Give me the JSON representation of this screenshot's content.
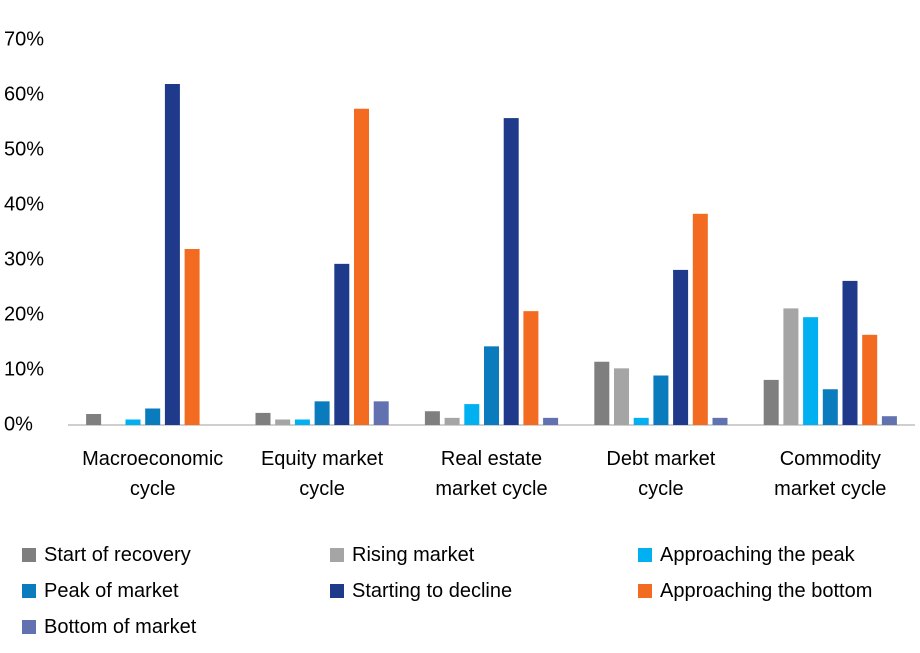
{
  "chart_data": {
    "type": "bar",
    "categories": [
      "Macroeconomic cycle",
      "Equity market cycle",
      "Real estate market cycle",
      "Debt market cycle",
      "Commodity market cycle"
    ],
    "series": [
      {
        "name": "Start of recovery",
        "color": "#7f7f7f",
        "values": [
          2,
          2.2,
          2.5,
          11.5,
          8.2
        ]
      },
      {
        "name": "Rising market",
        "color": "#a5a5a5",
        "values": [
          0,
          1,
          1.3,
          10.3,
          21.2
        ]
      },
      {
        "name": "Approaching the peak",
        "color": "#00b0f0",
        "values": [
          1,
          1,
          3.8,
          1.3,
          19.6
        ]
      },
      {
        "name": "Peak of market",
        "color": "#0a7bbd",
        "values": [
          3,
          4.3,
          14.3,
          9,
          6.5
        ]
      },
      {
        "name": "Starting to decline",
        "color": "#1f3a8a",
        "values": [
          62,
          29.3,
          55.8,
          28.2,
          26.2
        ]
      },
      {
        "name": "Approaching the bottom",
        "color": "#f26b21",
        "values": [
          32,
          57.5,
          20.7,
          38.4,
          16.4
        ]
      },
      {
        "name": "Bottom of market",
        "color": "#6271b0",
        "values": [
          0,
          4.3,
          1.3,
          1.3,
          1.6
        ]
      }
    ],
    "ylim": [
      0,
      70
    ],
    "yticks": [
      {
        "value": 0,
        "label": "0%"
      },
      {
        "value": 10,
        "label": "10%"
      },
      {
        "value": 20,
        "label": "20%"
      },
      {
        "value": 30,
        "label": "30%"
      },
      {
        "value": 40,
        "label": "40%"
      },
      {
        "value": 50,
        "label": "50%"
      },
      {
        "value": 60,
        "label": "60%"
      },
      {
        "value": 70,
        "label": "70%"
      }
    ],
    "grid": false
  }
}
